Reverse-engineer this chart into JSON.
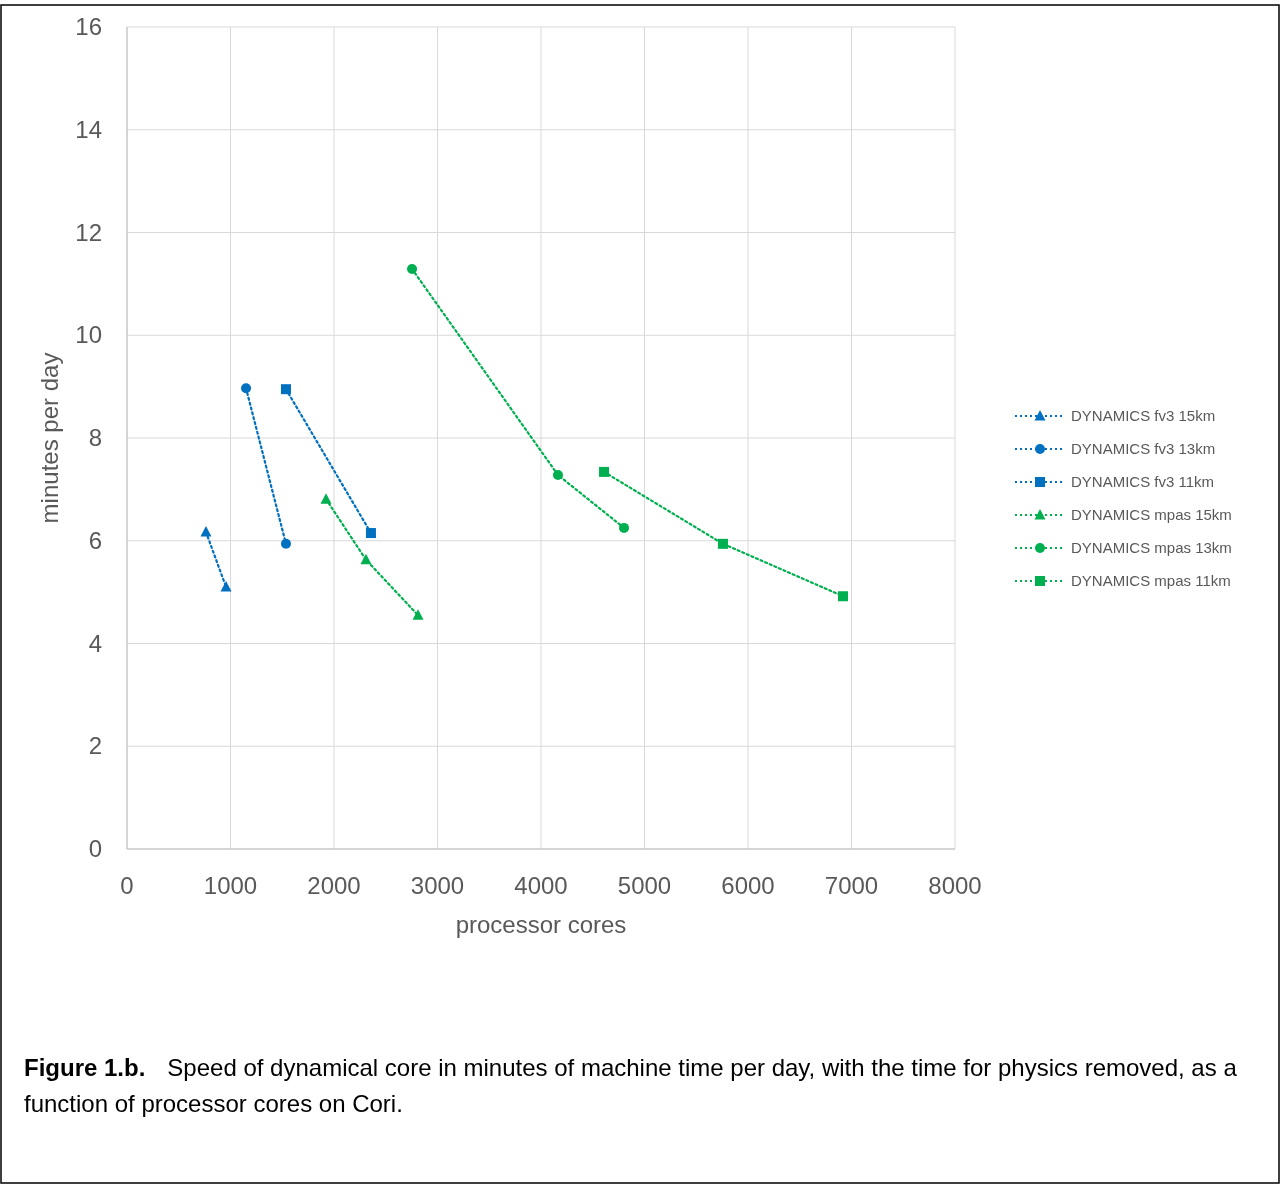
{
  "chart_data": {
    "type": "line",
    "xlabel": "processor cores",
    "ylabel": "minutes per day",
    "xlim": [
      0,
      8000
    ],
    "ylim": [
      0,
      16
    ],
    "xticks": [
      0,
      1000,
      2000,
      3000,
      4000,
      5000,
      6000,
      7000,
      8000
    ],
    "yticks": [
      0,
      2,
      4,
      6,
      8,
      10,
      12,
      14,
      16
    ],
    "grid": true,
    "legend": "right",
    "line_style": "dotted",
    "series": [
      {
        "name": "DYNAMICS fv3 15km",
        "color": "#0070c0",
        "marker": "triangle",
        "x": [
          763,
          957
        ],
        "values": [
          6.17,
          5.1
        ]
      },
      {
        "name": "DYNAMICS fv3 13km",
        "color": "#0070c0",
        "marker": "circle",
        "x": [
          1150,
          1536
        ],
        "values": [
          8.97,
          5.94
        ]
      },
      {
        "name": "DYNAMICS fv3 11km",
        "color": "#0070c0",
        "marker": "square",
        "x": [
          1536,
          2357
        ],
        "values": [
          8.95,
          6.15
        ]
      },
      {
        "name": "DYNAMICS mpas 15km",
        "color": "#00b050",
        "marker": "triangle",
        "x": [
          1923,
          2309,
          2812
        ],
        "values": [
          6.81,
          5.63,
          4.55
        ]
      },
      {
        "name": "DYNAMICS mpas 13km",
        "color": "#00b050",
        "marker": "circle",
        "x": [
          2754,
          4164,
          4802
        ],
        "values": [
          11.29,
          7.28,
          6.25
        ]
      },
      {
        "name": "DYNAMICS mpas 11km",
        "color": "#00b050",
        "marker": "square",
        "x": [
          4609,
          5758,
          6918
        ],
        "values": [
          7.34,
          5.94,
          4.92
        ]
      }
    ],
    "annotations": [
      "Figure 1.b.",
      "Speed of dynamical core in minutes of machine time per day, with the time for physics removed, as a function of processor cores on Cori."
    ]
  }
}
